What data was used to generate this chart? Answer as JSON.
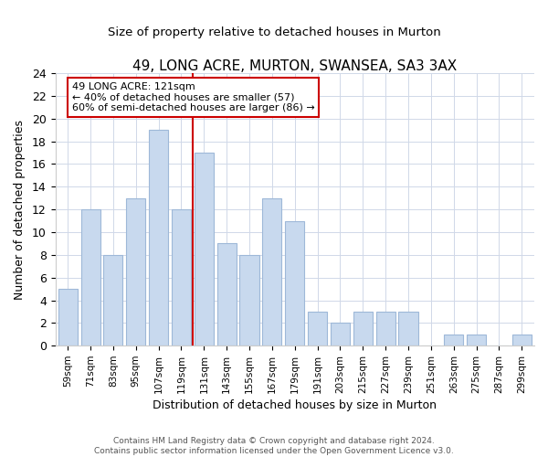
{
  "title": "49, LONG ACRE, MURTON, SWANSEA, SA3 3AX",
  "subtitle": "Size of property relative to detached houses in Murton",
  "xlabel": "Distribution of detached houses by size in Murton",
  "ylabel": "Number of detached properties",
  "bar_labels": [
    "59sqm",
    "71sqm",
    "83sqm",
    "95sqm",
    "107sqm",
    "119sqm",
    "131sqm",
    "143sqm",
    "155sqm",
    "167sqm",
    "179sqm",
    "191sqm",
    "203sqm",
    "215sqm",
    "227sqm",
    "239sqm",
    "251sqm",
    "263sqm",
    "275sqm",
    "287sqm",
    "299sqm"
  ],
  "bar_values": [
    5,
    12,
    8,
    13,
    19,
    12,
    17,
    9,
    8,
    13,
    11,
    3,
    2,
    3,
    3,
    3,
    0,
    1,
    1,
    0,
    1
  ],
  "bar_color": "#c8d9ee",
  "bar_edge_color": "#9eb8d8",
  "vline_x": 5.5,
  "vline_color": "#cc0000",
  "annotation_title": "49 LONG ACRE: 121sqm",
  "annotation_line1": "← 40% of detached houses are smaller (57)",
  "annotation_line2": "60% of semi-detached houses are larger (86) →",
  "ylim": [
    0,
    24
  ],
  "yticks": [
    0,
    2,
    4,
    6,
    8,
    10,
    12,
    14,
    16,
    18,
    20,
    22,
    24
  ],
  "footer1": "Contains HM Land Registry data © Crown copyright and database right 2024.",
  "footer2": "Contains public sector information licensed under the Open Government Licence v3.0.",
  "background_color": "#ffffff",
  "grid_color": "#d0d8e8"
}
